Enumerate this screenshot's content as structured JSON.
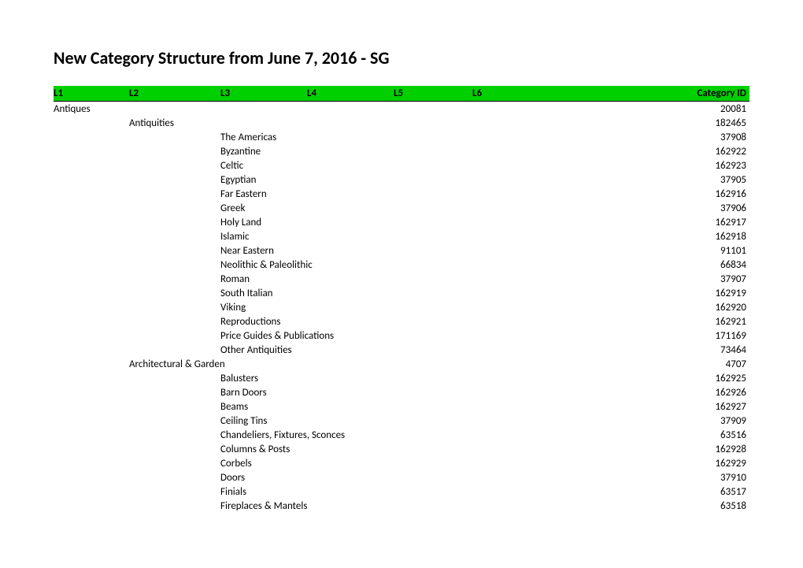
{
  "title": "New Category Structure from June 7, 2016 - SG",
  "header_bg": "#00d000",
  "columns": [
    "L1",
    "L2",
    "L3",
    "L4",
    "L5",
    "L6",
    "Category ID"
  ],
  "rows": [
    {
      "L1": "Antiques",
      "id": "20081"
    },
    {
      "L2": "Antiquities",
      "id": "182465"
    },
    {
      "L3": "The Americas",
      "id": "37908"
    },
    {
      "L3": "Byzantine",
      "id": "162922"
    },
    {
      "L3": "Celtic",
      "id": "162923"
    },
    {
      "L3": "Egyptian",
      "id": "37905"
    },
    {
      "L3": "Far Eastern",
      "id": "162916"
    },
    {
      "L3": "Greek",
      "id": "37906"
    },
    {
      "L3": "Holy Land",
      "id": "162917"
    },
    {
      "L3": "Islamic",
      "id": "162918"
    },
    {
      "L3": "Near Eastern",
      "id": "91101"
    },
    {
      "L3": "Neolithic & Paleolithic",
      "id": "66834"
    },
    {
      "L3": "Roman",
      "id": "37907"
    },
    {
      "L3": "South Italian",
      "id": "162919"
    },
    {
      "L3": "Viking",
      "id": "162920"
    },
    {
      "L3": "Reproductions",
      "id": "162921"
    },
    {
      "L3": "Price Guides & Publications",
      "id": "171169"
    },
    {
      "L3": "Other Antiquities",
      "id": "73464"
    },
    {
      "L2": "Architectural & Garden",
      "id": "4707"
    },
    {
      "L3": "Balusters",
      "id": "162925"
    },
    {
      "L3": "Barn Doors",
      "id": "162926"
    },
    {
      "L3": "Beams",
      "id": "162927"
    },
    {
      "L3": "Ceiling Tins",
      "id": "37909"
    },
    {
      "L3": "Chandeliers, Fixtures, Sconces",
      "id": "63516"
    },
    {
      "L3": "Columns & Posts",
      "id": "162928"
    },
    {
      "L3": "Corbels",
      "id": "162929"
    },
    {
      "L3": "Doors",
      "id": "37910"
    },
    {
      "L3": "Finials",
      "id": "63517"
    },
    {
      "L3": "Fireplaces & Mantels",
      "id": "63518"
    }
  ]
}
